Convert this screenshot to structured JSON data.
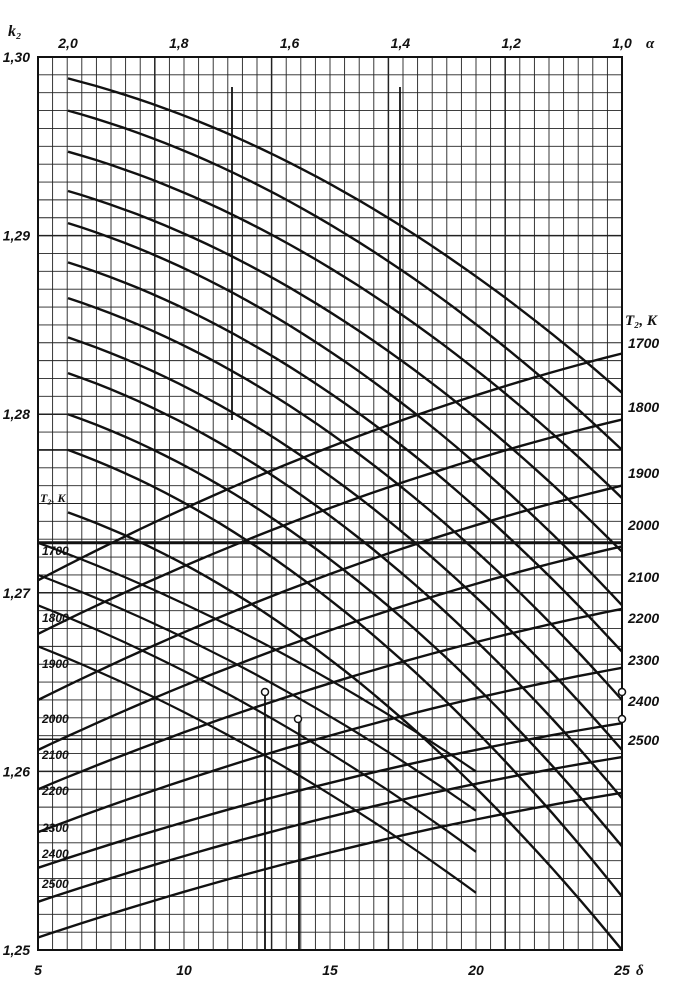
{
  "chart_data": {
    "type": "line",
    "axes": {
      "left": {
        "label": "k₂",
        "ticks": [
          "1,30",
          "1,29",
          "1,28",
          "1,27",
          "1,26",
          "1,25"
        ],
        "values": [
          1.3,
          1.29,
          1.28,
          1.27,
          1.26,
          1.25
        ],
        "range": [
          1.25,
          1.3
        ]
      },
      "bottom": {
        "label": "δ",
        "ticks": [
          "5",
          "10",
          "15",
          "20",
          "25"
        ],
        "values": [
          5,
          10,
          15,
          20,
          25
        ],
        "range": [
          5,
          25
        ]
      },
      "top": {
        "label": "α",
        "ticks": [
          "2,0",
          "1,8",
          "1,6",
          "1,4",
          "1,2",
          "1,0"
        ],
        "values": [
          2.0,
          1.8,
          1.6,
          1.4,
          1.2,
          1.0
        ],
        "range": [
          2.0,
          1.0
        ]
      },
      "right": {
        "label": "T₂, K",
        "ticks": [
          "1700",
          "1800",
          "1900",
          "2000",
          "2100",
          "2200",
          "2300",
          "2400",
          "2500"
        ]
      },
      "left_inner": {
        "label": "T₂, K",
        "ticks": [
          "1700",
          "1800",
          "1900",
          "2000",
          "2100",
          "2200",
          "2300",
          "2400",
          "2500"
        ]
      }
    },
    "grid": true,
    "alpha_family": [
      {
        "k2_at_alpha_2": 1.2988,
        "k2_at_alpha_1": 1.2812
      },
      {
        "k2_at_alpha_2": 1.297,
        "k2_at_alpha_1": 1.278
      },
      {
        "k2_at_alpha_2": 1.2947,
        "k2_at_alpha_1": 1.2753
      },
      {
        "k2_at_alpha_2": 1.2925,
        "k2_at_alpha_1": 1.2723
      },
      {
        "k2_at_alpha_2": 1.2907,
        "k2_at_alpha_1": 1.2693
      },
      {
        "k2_at_alpha_2": 1.2885,
        "k2_at_alpha_1": 1.2667
      },
      {
        "k2_at_alpha_2": 1.2865,
        "k2_at_alpha_1": 1.264
      },
      {
        "k2_at_alpha_2": 1.2843,
        "k2_at_alpha_1": 1.2612
      },
      {
        "k2_at_alpha_2": 1.2823,
        "k2_at_alpha_1": 1.2585
      },
      {
        "k2_at_alpha_2": 1.28,
        "k2_at_alpha_1": 1.2558
      },
      {
        "k2_at_alpha_2": 1.278,
        "k2_at_alpha_1": 1.253
      },
      {
        "k2_at_alpha_2": 1.2745,
        "k2_at_alpha_1": 1.25
      }
    ],
    "alpha_family_2": [
      {
        "k2_at_delta_5": 1.2728,
        "k2_at_delta_20": 1.26
      },
      {
        "k2_at_delta_5": 1.271,
        "k2_at_delta_20": 1.2578
      },
      {
        "k2_at_delta_5": 1.2693,
        "k2_at_delta_20": 1.2555
      },
      {
        "k2_at_delta_5": 1.267,
        "k2_at_delta_20": 1.2532
      }
    ],
    "temperature_family": [
      {
        "name": "1700",
        "k2_at_delta_5": 1.2707,
        "k2_at_delta_25": 1.2834
      },
      {
        "name": "1800",
        "k2_at_delta_5": 1.2677,
        "k2_at_delta_25": 1.2797
      },
      {
        "name": "1900",
        "k2_at_delta_5": 1.264,
        "k2_at_delta_25": 1.276
      },
      {
        "name": "2000",
        "k2_at_delta_5": 1.2612,
        "k2_at_delta_25": 1.2726
      },
      {
        "name": "2100",
        "k2_at_delta_5": 1.259,
        "k2_at_delta_25": 1.2691
      },
      {
        "name": "2200",
        "k2_at_delta_5": 1.2566,
        "k2_at_delta_25": 1.2658
      },
      {
        "name": "2300",
        "k2_at_delta_5": 1.2546,
        "k2_at_delta_25": 1.2627
      },
      {
        "name": "2400",
        "k2_at_delta_5": 1.2527,
        "k2_at_delta_25": 1.2608
      },
      {
        "name": "2500",
        "k2_at_delta_5": 1.2507,
        "k2_at_delta_25": 1.2588
      }
    ],
    "key_lines": [
      {
        "description": "horizontal reference",
        "k2": 1.2728
      },
      {
        "description": "horizontal reference",
        "k2": 1.278
      },
      {
        "description": "horizontal reference",
        "k2": 1.2618
      }
    ]
  }
}
